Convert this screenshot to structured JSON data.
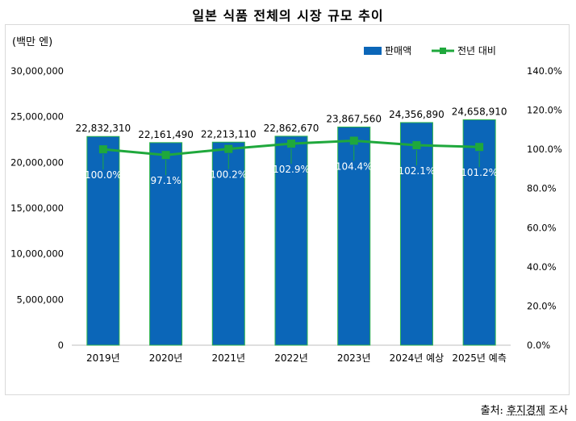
{
  "title": "일본 식품 전체의 시장 규모 추이",
  "source": {
    "label": "출처:",
    "name": "후지경제",
    "suffix": "조사"
  },
  "chart_data": {
    "type": "bar+line",
    "unit_label": "(백만 엔)",
    "categories": [
      "2019년",
      "2020년",
      "2021년",
      "2022년",
      "2023년",
      "2024년 예상",
      "2025년 예측"
    ],
    "series": [
      {
        "name": "판매액",
        "type": "bar",
        "axis": "left",
        "color": "#0b66b8",
        "values": [
          22832310,
          22161490,
          22213110,
          22862670,
          23867560,
          24356890,
          24658910
        ],
        "labels": [
          "22,832,310",
          "22,161,490",
          "22,213,110",
          "22,862,670",
          "23,867,560",
          "24,356,890",
          "24,658,910"
        ]
      },
      {
        "name": "전년 대비",
        "type": "line",
        "axis": "right",
        "color": "#1fa83c",
        "values": [
          100.0,
          97.1,
          100.2,
          102.9,
          104.4,
          102.1,
          101.2
        ],
        "labels": [
          "100.0%",
          "97.1%",
          "100.2%",
          "102.9%",
          "104.4%",
          "102.1%",
          "101.2%"
        ]
      }
    ],
    "y_left": {
      "min": 0,
      "max": 30000000,
      "ticks": [
        0,
        5000000,
        10000000,
        15000000,
        20000000,
        25000000,
        30000000
      ],
      "tick_labels": [
        "0",
        "5,000,000",
        "10,000,000",
        "15,000,000",
        "20,000,000",
        "25,000,000",
        "30,000,000"
      ]
    },
    "y_right": {
      "min": 0,
      "max": 140,
      "ticks": [
        0,
        20,
        40,
        60,
        80,
        100,
        120,
        140
      ],
      "tick_labels": [
        "0.0%",
        "20.0%",
        "40.0%",
        "60.0%",
        "80.0%",
        "100.0%",
        "120.0%",
        "140.0%"
      ]
    },
    "legend_position": "top-right",
    "grid": false
  }
}
